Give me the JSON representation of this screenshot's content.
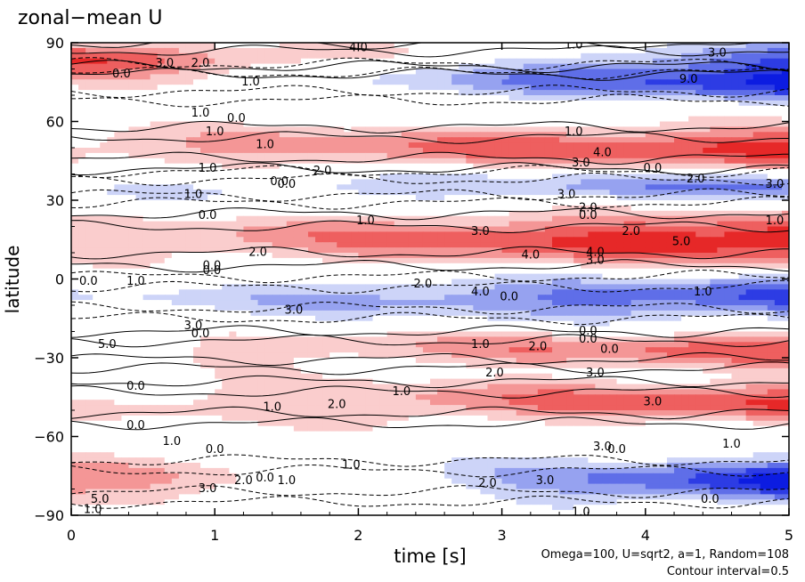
{
  "chart_data": {
    "type": "heatmap",
    "title": "zonal−mean U",
    "xlabel": "time [s]",
    "ylabel": "latitude",
    "xlim": [
      0,
      5
    ],
    "ylim": [
      -90,
      90
    ],
    "x_ticks": [
      "0",
      "1",
      "2",
      "3",
      "4",
      "5"
    ],
    "y_ticks": [
      "90",
      "60",
      "30",
      "0",
      "−30",
      "−60",
      "−90"
    ],
    "footnote_params": "Omega=100, U=sqrt2, a=1, Random=108",
    "footnote_interval": "Contour interval=0.5",
    "colors": {
      "positive": "#ee1111",
      "negative": "#0a1ee6",
      "neutral": "#ffffff"
    },
    "lat_bands": [
      {
        "lat_center": 84,
        "lat_width": 6,
        "strength_start": 2.0,
        "strength_end": -1.5
      },
      {
        "lat_center": 75,
        "lat_width": 7,
        "strength_start": 0.6,
        "strength_end": -2.5
      },
      {
        "lat_center": 50,
        "lat_width": 8,
        "strength_start": 0.8,
        "strength_end": 2.2
      },
      {
        "lat_center": 35,
        "lat_width": 6,
        "strength_start": -0.3,
        "strength_end": -1.6
      },
      {
        "lat_center": 15,
        "lat_width": 10,
        "strength_start": 0.6,
        "strength_end": 2.6
      },
      {
        "lat_center": -7,
        "lat_width": 8,
        "strength_start": -0.3,
        "strength_end": -2.2
      },
      {
        "lat_center": -27,
        "lat_width": 7,
        "strength_start": 0.3,
        "strength_end": 1.8
      },
      {
        "lat_center": -47,
        "lat_width": 8,
        "strength_start": 0.5,
        "strength_end": 2.0
      },
      {
        "lat_center": -77,
        "lat_width": 8,
        "strength_start": 1.5,
        "strength_end": -2.6
      }
    ],
    "contour_labels": [
      {
        "t": 0.35,
        "lat": 78,
        "text": "0.0"
      },
      {
        "t": 0.65,
        "lat": 82,
        "text": "3.0"
      },
      {
        "t": 0.9,
        "lat": 82,
        "text": "2.0"
      },
      {
        "t": 1.25,
        "lat": 75,
        "text": "1.0"
      },
      {
        "t": 2.0,
        "lat": 88,
        "text": "4.0"
      },
      {
        "t": 3.5,
        "lat": 89,
        "text": "1.0"
      },
      {
        "t": 4.5,
        "lat": 86,
        "text": "3.0"
      },
      {
        "t": 4.3,
        "lat": 76,
        "text": "9.0"
      },
      {
        "t": 0.9,
        "lat": 63,
        "text": "1.0"
      },
      {
        "t": 1.15,
        "lat": 61,
        "text": "0.0"
      },
      {
        "t": 1.0,
        "lat": 56,
        "text": "1.0"
      },
      {
        "t": 1.35,
        "lat": 51,
        "text": "1.0"
      },
      {
        "t": 3.5,
        "lat": 56,
        "text": "1.0"
      },
      {
        "t": 3.7,
        "lat": 48,
        "text": "4.0"
      },
      {
        "t": 3.55,
        "lat": 44,
        "text": "3.0"
      },
      {
        "t": 4.05,
        "lat": 42,
        "text": "0.0"
      },
      {
        "t": 0.95,
        "lat": 42,
        "text": "1.0"
      },
      {
        "t": 1.75,
        "lat": 41,
        "text": "2.0"
      },
      {
        "t": 1.45,
        "lat": 37,
        "text": "0.0"
      },
      {
        "t": 1.5,
        "lat": 36,
        "text": "0.0"
      },
      {
        "t": 4.35,
        "lat": 38,
        "text": "2.0"
      },
      {
        "t": 4.9,
        "lat": 36,
        "text": "3.0"
      },
      {
        "t": 0.85,
        "lat": 32,
        "text": "1.0"
      },
      {
        "t": 3.45,
        "lat": 32,
        "text": "3.0"
      },
      {
        "t": 0.95,
        "lat": 24,
        "text": "0.0"
      },
      {
        "t": 3.6,
        "lat": 27,
        "text": "2.0"
      },
      {
        "t": 3.6,
        "lat": 24,
        "text": "0.0"
      },
      {
        "t": 2.05,
        "lat": 22,
        "text": "1.0"
      },
      {
        "t": 4.9,
        "lat": 22,
        "text": "1.0"
      },
      {
        "t": 2.85,
        "lat": 18,
        "text": "3.0"
      },
      {
        "t": 3.9,
        "lat": 18,
        "text": "2.0"
      },
      {
        "t": 4.25,
        "lat": 14,
        "text": "5.0"
      },
      {
        "t": 1.3,
        "lat": 10,
        "text": "2.0"
      },
      {
        "t": 3.2,
        "lat": 9,
        "text": "4.0"
      },
      {
        "t": 3.65,
        "lat": 10,
        "text": "4.0"
      },
      {
        "t": 3.65,
        "lat": 7,
        "text": "3.0"
      },
      {
        "t": 0.98,
        "lat": 5,
        "text": "0.0"
      },
      {
        "t": 0.98,
        "lat": 3,
        "text": "0.0"
      },
      {
        "t": 0.12,
        "lat": -1,
        "text": "0.0"
      },
      {
        "t": 0.45,
        "lat": -1,
        "text": "1.0"
      },
      {
        "t": 2.45,
        "lat": -2,
        "text": "2.0"
      },
      {
        "t": 2.85,
        "lat": -5,
        "text": "4.0"
      },
      {
        "t": 3.05,
        "lat": -7,
        "text": "0.0"
      },
      {
        "t": 4.4,
        "lat": -5,
        "text": "1.0"
      },
      {
        "t": 1.55,
        "lat": -12,
        "text": "3.0"
      },
      {
        "t": 0.85,
        "lat": -18,
        "text": "3.0"
      },
      {
        "t": 0.9,
        "lat": -21,
        "text": "0.0"
      },
      {
        "t": 3.6,
        "lat": -20,
        "text": "0.0"
      },
      {
        "t": 3.6,
        "lat": -23,
        "text": "0.0"
      },
      {
        "t": 0.25,
        "lat": -25,
        "text": "5.0"
      },
      {
        "t": 2.85,
        "lat": -25,
        "text": "1.0"
      },
      {
        "t": 3.25,
        "lat": -26,
        "text": "2.0"
      },
      {
        "t": 3.75,
        "lat": -27,
        "text": "0.0"
      },
      {
        "t": 2.95,
        "lat": -36,
        "text": "2.0"
      },
      {
        "t": 3.65,
        "lat": -36,
        "text": "3.0"
      },
      {
        "t": 0.45,
        "lat": -41,
        "text": "0.0"
      },
      {
        "t": 2.3,
        "lat": -43,
        "text": "1.0"
      },
      {
        "t": 1.4,
        "lat": -49,
        "text": "1.0"
      },
      {
        "t": 1.85,
        "lat": -48,
        "text": "2.0"
      },
      {
        "t": 4.05,
        "lat": -47,
        "text": "3.0"
      },
      {
        "t": 0.45,
        "lat": -56,
        "text": "0.0"
      },
      {
        "t": 0.7,
        "lat": -62,
        "text": "1.0"
      },
      {
        "t": 1.0,
        "lat": -65,
        "text": "0.0"
      },
      {
        "t": 3.7,
        "lat": -64,
        "text": "3.0"
      },
      {
        "t": 3.8,
        "lat": -65,
        "text": "0.0"
      },
      {
        "t": 4.6,
        "lat": -63,
        "text": "1.0"
      },
      {
        "t": 1.95,
        "lat": -71,
        "text": "1.0"
      },
      {
        "t": 1.2,
        "lat": -77,
        "text": "2.0"
      },
      {
        "t": 1.35,
        "lat": -76,
        "text": "0.0"
      },
      {
        "t": 1.5,
        "lat": -77,
        "text": "1.0"
      },
      {
        "t": 0.95,
        "lat": -80,
        "text": "3.0"
      },
      {
        "t": 0.2,
        "lat": -84,
        "text": "5.0"
      },
      {
        "t": 2.9,
        "lat": -78,
        "text": "2.0"
      },
      {
        "t": 3.3,
        "lat": -77,
        "text": "3.0"
      },
      {
        "t": 4.45,
        "lat": -84,
        "text": "0.0"
      },
      {
        "t": 0.15,
        "lat": -88,
        "text": "1.0"
      },
      {
        "t": 3.55,
        "lat": -89,
        "text": "1.0"
      }
    ]
  }
}
